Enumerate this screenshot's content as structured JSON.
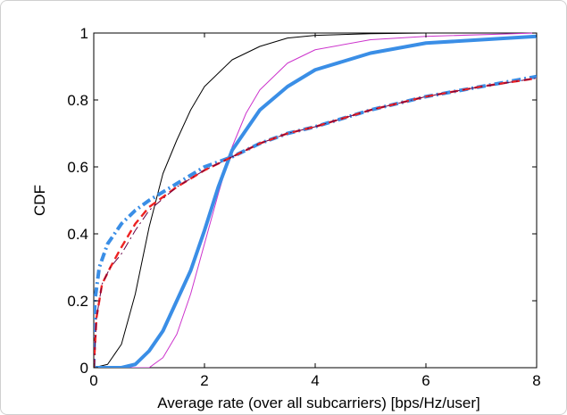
{
  "chart_data": {
    "type": "line",
    "title": "",
    "xlabel": "Average rate (over all subcarriers) [bps/Hz/user]",
    "ylabel": "CDF",
    "xlim": [
      0,
      8
    ],
    "ylim": [
      0,
      1
    ],
    "x_ticks": [
      "0",
      "2",
      "4",
      "6",
      "8"
    ],
    "y_ticks": [
      "0",
      "0.2",
      "0.4",
      "0.6",
      "0.8",
      "1"
    ],
    "grid": false,
    "legend": "none",
    "series": [
      {
        "color": "#000000",
        "style": "solid",
        "width": "thin",
        "points": [
          [
            0,
            0
          ],
          [
            0.25,
            0.01
          ],
          [
            0.5,
            0.07
          ],
          [
            0.75,
            0.22
          ],
          [
            1.0,
            0.42
          ],
          [
            1.25,
            0.58
          ],
          [
            1.5,
            0.68
          ],
          [
            1.75,
            0.77
          ],
          [
            2.0,
            0.84
          ],
          [
            2.5,
            0.92
          ],
          [
            3.0,
            0.96
          ],
          [
            3.5,
            0.985
          ],
          [
            4.0,
            0.993
          ],
          [
            5.0,
            0.998
          ],
          [
            6.0,
            1.0
          ],
          [
            8.0,
            1.0
          ]
        ]
      },
      {
        "color": "#cc33cc",
        "style": "solid",
        "width": "thin",
        "points": [
          [
            0,
            0
          ],
          [
            1.0,
            0.0
          ],
          [
            1.25,
            0.03
          ],
          [
            1.5,
            0.1
          ],
          [
            1.75,
            0.22
          ],
          [
            2.0,
            0.37
          ],
          [
            2.25,
            0.52
          ],
          [
            2.5,
            0.66
          ],
          [
            2.75,
            0.76
          ],
          [
            3.0,
            0.83
          ],
          [
            3.5,
            0.91
          ],
          [
            4.0,
            0.95
          ],
          [
            5.0,
            0.98
          ],
          [
            6.0,
            0.99
          ],
          [
            8.0,
            1.0
          ]
        ]
      },
      {
        "color": "#3a8ee6",
        "style": "solid",
        "width": "thick",
        "points": [
          [
            0,
            0
          ],
          [
            0.5,
            0.0
          ],
          [
            0.75,
            0.01
          ],
          [
            1.0,
            0.05
          ],
          [
            1.25,
            0.11
          ],
          [
            1.5,
            0.2
          ],
          [
            1.75,
            0.29
          ],
          [
            2.0,
            0.41
          ],
          [
            2.25,
            0.54
          ],
          [
            2.5,
            0.65
          ],
          [
            3.0,
            0.77
          ],
          [
            3.5,
            0.84
          ],
          [
            4.0,
            0.89
          ],
          [
            5.0,
            0.94
          ],
          [
            6.0,
            0.97
          ],
          [
            8.0,
            0.99
          ]
        ]
      },
      {
        "color": "#3a8ee6",
        "style": "dashdot",
        "width": "thick",
        "points": [
          [
            0,
            0
          ],
          [
            0.02,
            0.2
          ],
          [
            0.1,
            0.3
          ],
          [
            0.25,
            0.37
          ],
          [
            0.5,
            0.43
          ],
          [
            0.75,
            0.47
          ],
          [
            1.0,
            0.5
          ],
          [
            1.5,
            0.55
          ],
          [
            2.0,
            0.6
          ],
          [
            2.5,
            0.63
          ],
          [
            3.0,
            0.67
          ],
          [
            3.5,
            0.7
          ],
          [
            4.0,
            0.72
          ],
          [
            5.0,
            0.77
          ],
          [
            6.0,
            0.81
          ],
          [
            7.0,
            0.84
          ],
          [
            8.0,
            0.87
          ]
        ]
      },
      {
        "color": "#ee2222",
        "style": "dashed",
        "width": "medium",
        "points": [
          [
            0,
            0
          ],
          [
            0.05,
            0.15
          ],
          [
            0.15,
            0.25
          ],
          [
            0.3,
            0.3
          ],
          [
            0.5,
            0.36
          ],
          [
            0.75,
            0.43
          ],
          [
            1.0,
            0.48
          ],
          [
            1.5,
            0.54
          ],
          [
            2.0,
            0.59
          ],
          [
            2.5,
            0.63
          ],
          [
            3.0,
            0.67
          ],
          [
            3.5,
            0.7
          ],
          [
            4.0,
            0.72
          ],
          [
            5.0,
            0.77
          ],
          [
            6.0,
            0.81
          ],
          [
            7.0,
            0.84
          ],
          [
            8.0,
            0.865
          ]
        ]
      },
      {
        "color": "#660044",
        "style": "dashdot",
        "width": "thin",
        "points": [
          [
            0,
            0
          ],
          [
            0.05,
            0.15
          ],
          [
            0.15,
            0.25
          ],
          [
            0.3,
            0.3
          ],
          [
            0.5,
            0.34
          ],
          [
            0.75,
            0.41
          ],
          [
            1.0,
            0.47
          ],
          [
            1.5,
            0.54
          ],
          [
            2.0,
            0.59
          ],
          [
            2.5,
            0.63
          ],
          [
            3.0,
            0.67
          ],
          [
            3.5,
            0.7
          ],
          [
            4.0,
            0.72
          ],
          [
            5.0,
            0.77
          ],
          [
            6.0,
            0.81
          ],
          [
            7.0,
            0.84
          ],
          [
            8.0,
            0.865
          ]
        ]
      }
    ]
  }
}
